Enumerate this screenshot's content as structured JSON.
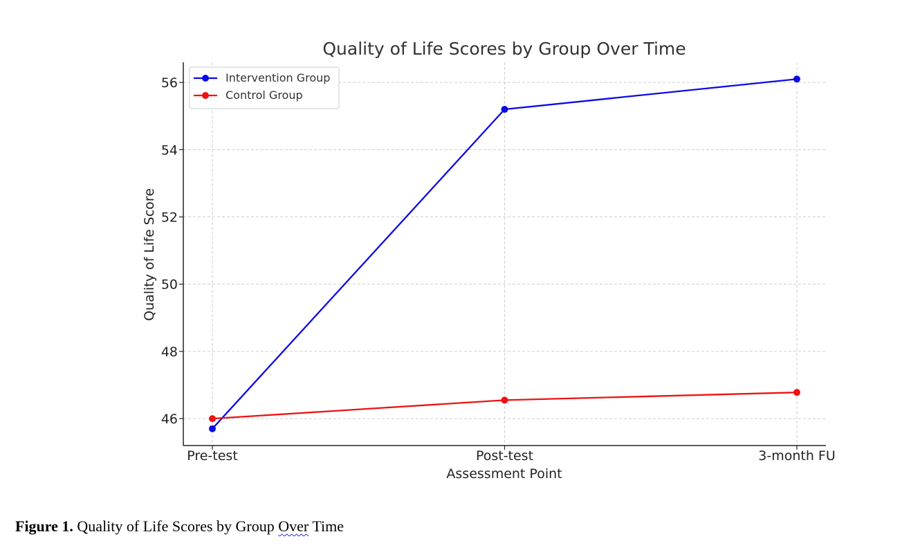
{
  "caption": {
    "label": "Figure 1.",
    "pre": " Quality of Life Scores by Group ",
    "flagged": "Over",
    "post": " Time"
  },
  "chart_data": {
    "type": "line",
    "title": "Quality of Life Scores by Group Over Time",
    "xlabel": "Assessment Point",
    "ylabel": "Quality of Life Score",
    "categories": [
      "Pre-test",
      "Post-test",
      "3-month FU"
    ],
    "ylim": [
      45.2,
      56.6
    ],
    "yticks": [
      46,
      48,
      50,
      52,
      54,
      56
    ],
    "grid": true,
    "legend_position": "top-left",
    "series": [
      {
        "name": "Intervention Group",
        "color": "#0a0ae6",
        "values": [
          45.7,
          55.2,
          56.1
        ],
        "marker": "circle"
      },
      {
        "name": "Control Group",
        "color": "#ee1111",
        "values": [
          46.0,
          46.55,
          46.78
        ],
        "marker": "circle"
      }
    ]
  }
}
